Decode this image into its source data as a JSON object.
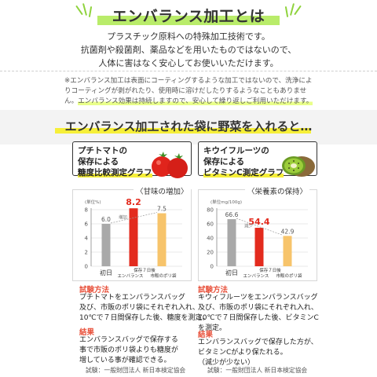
{
  "header": {
    "title": "エンバランス加工とは",
    "intro": [
      "プラスチック原料への特殊加工技術です。",
      "抗菌剤や殺菌剤、薬品などを用いたものではないので、",
      "人体に害はなく安心してお使いいただけます。"
    ]
  },
  "note": {
    "line1": "※エンバランス加工は表面にコーティングするような加工ではないので、洗浄によ",
    "line2": "りコーティングが剥がれたり、使用時に溶けだしたりするようなこともありませ",
    "line3a": "ん。",
    "line3b": "エンバランス効果は持続しますので、安心して繰り返しご利用いただけます。"
  },
  "section": {
    "title": "エンバランス加工された袋に野菜を入れると…"
  },
  "left": {
    "card_lines": [
      "プチトマトの",
      "保存による",
      "糖度比較測定グラフ"
    ],
    "chart_label": "〈甘味の増加〉",
    "chart_data": {
      "type": "bar",
      "unit_label": "(単位%)",
      "yticks": [
        "0",
        "2",
        "4",
        "6",
        "8"
      ],
      "ylim": [
        0,
        8
      ],
      "categories": [
        "初日",
        "エンバランス",
        "市販のポリ袋"
      ],
      "group_label": "保存７日後",
      "values": [
        6.0,
        8.2,
        7.5
      ],
      "value_labels": [
        "6.0",
        "8.2",
        "7.5"
      ],
      "annotation": "増加",
      "colors": [
        "#a9a9a9",
        "#e32b1e",
        "#f7c46b"
      ]
    },
    "method_heading": "試験方法",
    "method_lines": [
      "プチトマトをエンバランスバッグ",
      "及び、市販のポリ袋にそれぞれ入れ、",
      "10℃で７日間保存した後、糖度を測定。"
    ],
    "result_heading": "結果",
    "result_lines": [
      "エンバランスバッグで保存する",
      "事で市販のポリ袋よりも糖度が",
      "増している事が確認できる。"
    ],
    "tested_by": "試験：一般財団法人 新日本検定協会"
  },
  "right": {
    "card_lines": [
      "キウイフルーツの",
      "保存による",
      "ビタミンC測定グラフ"
    ],
    "chart_label": "〈栄養素の保持〉",
    "chart_data": {
      "type": "bar",
      "unit_label": "(単位mg/100g)",
      "yticks": [
        "0",
        "20",
        "40",
        "60",
        "80"
      ],
      "ylim": [
        0,
        80
      ],
      "categories": [
        "初日",
        "エンバランス",
        "市販のポリ袋"
      ],
      "group_label": "保存７日後",
      "values": [
        66.6,
        54.4,
        42.9
      ],
      "value_labels": [
        "66.6",
        "54.4",
        "42.9"
      ],
      "annotation": "減少",
      "colors": [
        "#a9a9a9",
        "#e32b1e",
        "#f7c46b"
      ]
    },
    "method_heading": "試験方法",
    "method_lines": [
      "キウィフルーツをエンバランスバッグ",
      "及び、市販のポリ袋にそれぞれ入れ、",
      "10℃で７日間保存した後、ビタミンC",
      "を測定。"
    ],
    "result_heading": "結果",
    "result_lines": [
      "エンバランスバッグで保存した方が、",
      "ビタミンCがより保たれる。",
      "（減少が少ない）"
    ],
    "tested_by": "試験：一般財団法人 新日本検定協会"
  }
}
